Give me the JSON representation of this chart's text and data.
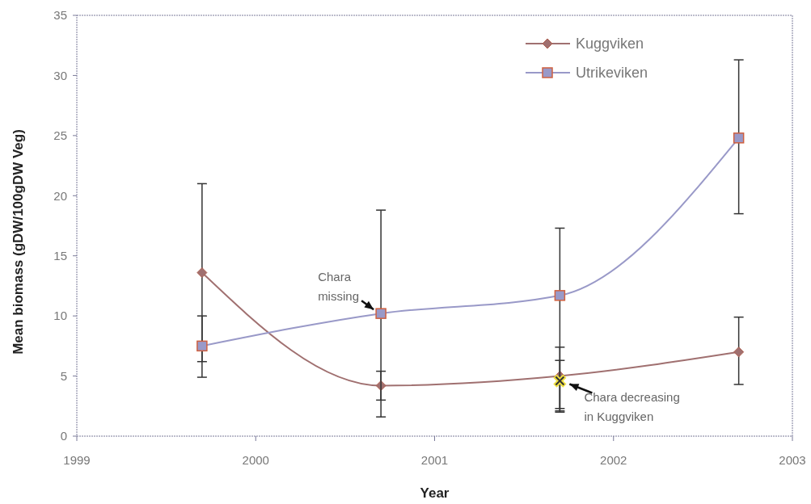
{
  "chart_data": {
    "type": "line",
    "xlabel": "Year",
    "ylabel": "Mean biomass (gDW/100gDW Veg)",
    "xlim": [
      1999,
      2003
    ],
    "xticks": [
      1999,
      2000,
      2001,
      2002,
      2003
    ],
    "ylim": [
      0,
      35
    ],
    "yticks": [
      0,
      5,
      10,
      15,
      20,
      25,
      30,
      35
    ],
    "grid": false,
    "legend": "top right",
    "series": [
      {
        "name": "Kuggviken",
        "color": "#a07070",
        "marker": "diamond",
        "x": [
          1999.7,
          2000.7,
          2001.7,
          2002.7
        ],
        "values": [
          13.6,
          4.2,
          5.0,
          7.0
        ],
        "errors": [
          [
            4.9,
            21.0
          ],
          [
            3.0,
            5.4
          ],
          [
            2.3,
            7.4
          ],
          [
            4.3,
            9.9
          ]
        ]
      },
      {
        "name": "Utrikeviken",
        "color": "#9999c8",
        "marker": "square",
        "x": [
          1999.7,
          2000.7,
          2001.7,
          2002.7
        ],
        "values": [
          7.5,
          10.2,
          11.7,
          24.8
        ],
        "errors": [
          [
            6.2,
            10.0
          ],
          [
            1.6,
            18.8
          ],
          [
            2.0,
            17.3
          ],
          [
            18.5,
            31.3
          ]
        ]
      },
      {
        "color": "#f0e040",
        "marker": "cross",
        "x": [
          2001.7
        ],
        "values": [
          4.6
        ],
        "errors": [
          [
            2.1,
            6.3
          ]
        ]
      }
    ],
    "annotations": [
      {
        "text": "Chara\nmissing",
        "x": 2000.7,
        "y": 10.2
      },
      {
        "text": "Chara decreasing\nin Kuggviken",
        "x": 2001.7,
        "y": 4.6
      }
    ]
  }
}
